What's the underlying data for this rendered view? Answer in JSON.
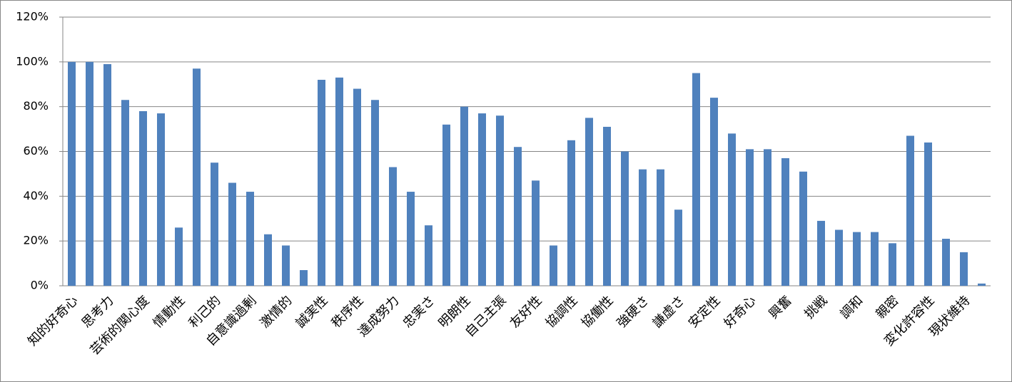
{
  "chart_data": {
    "type": "bar",
    "categories": [
      "知的好奇心",
      null,
      "思考力",
      null,
      "芸術的関心度",
      null,
      "情動性",
      null,
      "利己的",
      null,
      "自意識過剰",
      null,
      "激情的",
      null,
      "誠実性",
      null,
      "秩序性",
      null,
      "達成努力",
      null,
      "忠実さ",
      null,
      "明朗性",
      null,
      "自己主張",
      null,
      "友好性",
      null,
      "協調性",
      null,
      "協働性",
      null,
      "強硬さ",
      null,
      "謙虚さ",
      null,
      "安定性",
      null,
      "好奇心",
      null,
      "興奮",
      null,
      "挑戦",
      null,
      "調和",
      null,
      "親密",
      null,
      "変化許容性",
      null,
      "現状維持",
      null
    ],
    "values": [
      100,
      100,
      99,
      83,
      78,
      77,
      26,
      97,
      55,
      46,
      42,
      23,
      18,
      7,
      92,
      93,
      88,
      83,
      53,
      42,
      27,
      72,
      80,
      77,
      76,
      62,
      47,
      18,
      65,
      75,
      71,
      60,
      52,
      52,
      34,
      95,
      84,
      68,
      61,
      61,
      57,
      51,
      29,
      25,
      24,
      24,
      19,
      67,
      64,
      21,
      15,
      1
    ],
    "color": "#4f81bd",
    "ylim": [
      0,
      120
    ],
    "yticks": [
      {
        "value": 0,
        "label": "0%"
      },
      {
        "value": 20,
        "label": "20%"
      },
      {
        "value": 40,
        "label": "40%"
      },
      {
        "value": 60,
        "label": "60%"
      },
      {
        "value": 80,
        "label": "80%"
      },
      {
        "value": 100,
        "label": "100%"
      },
      {
        "value": 120,
        "label": "120%"
      }
    ],
    "grid": true
  }
}
